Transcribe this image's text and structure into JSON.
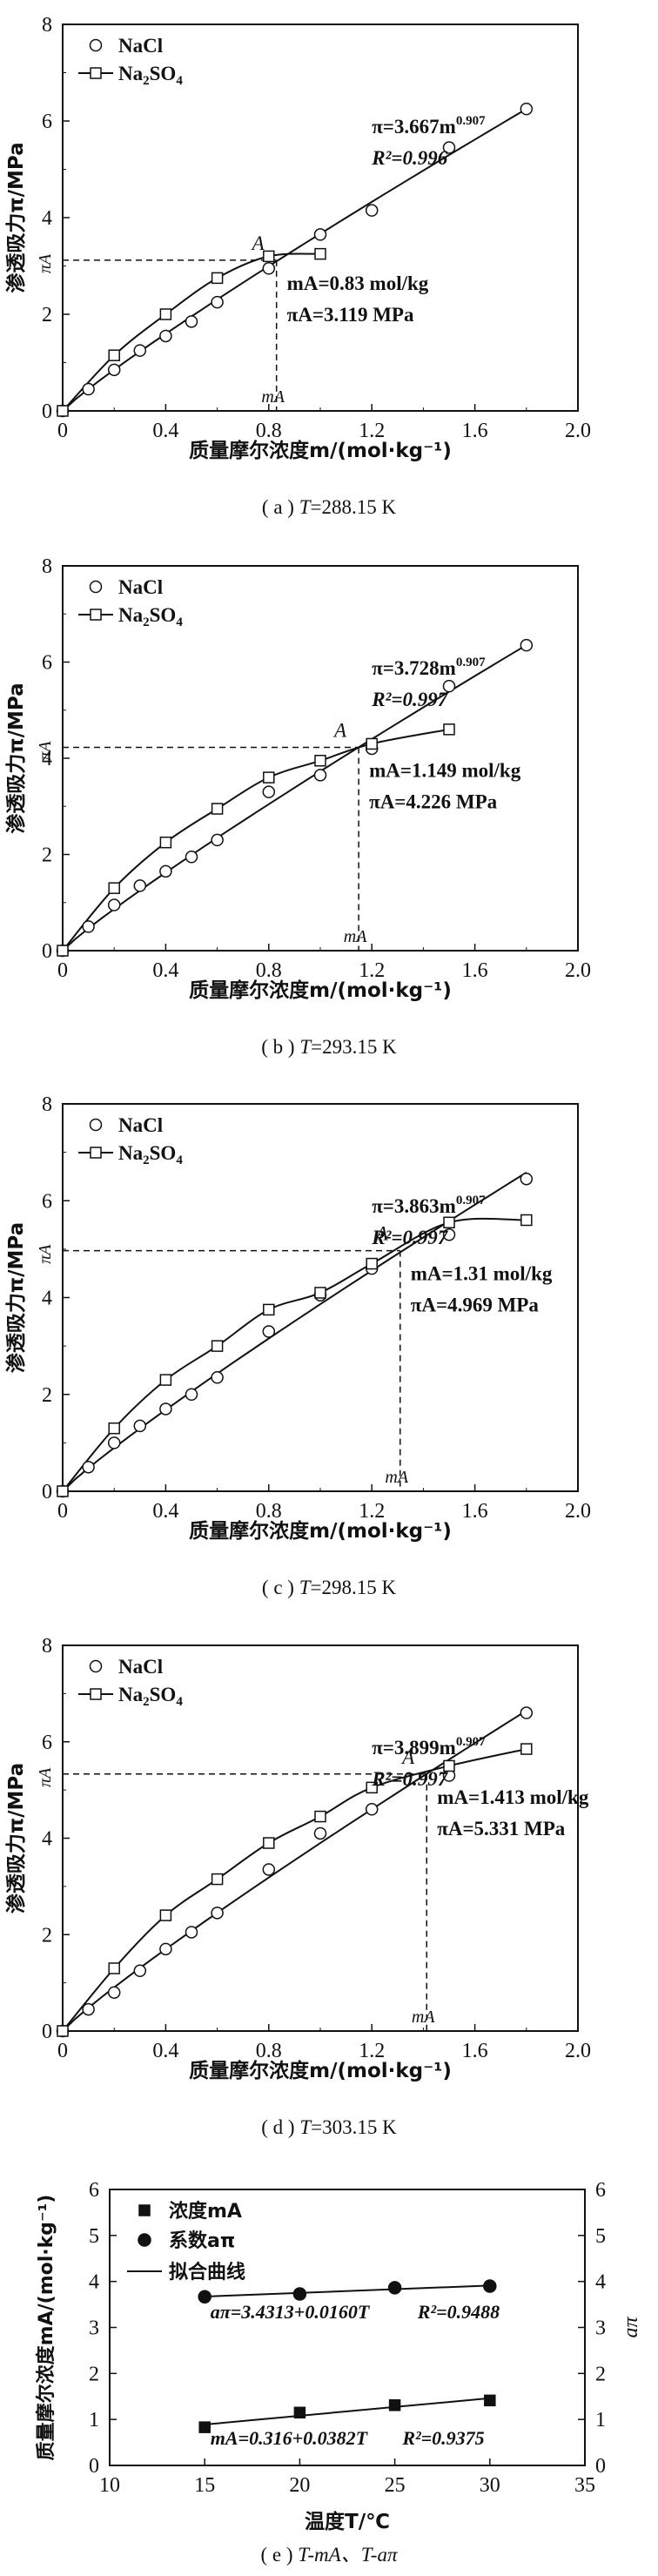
{
  "panels": [
    {
      "caption_prefix": "( a ) ",
      "caption_t": "T",
      "caption_rest": "=288.15 K",
      "chart_data": {
        "type": "scatter",
        "xlabel": "质量摩尔浓度m/(mol·kg⁻¹)",
        "ylabel": "渗透吸力π/MPa",
        "xlim": [
          0,
          2.0
        ],
        "ylim": [
          0,
          8
        ],
        "x_ticks": [
          "0",
          "0.4",
          "0.8",
          "1.2",
          "1.6",
          "2.0"
        ],
        "y_ticks": [
          "0",
          "2",
          "4",
          "6",
          "8"
        ],
        "series": [
          {
            "name": "NaCl",
            "marker": "circle",
            "fit": "line",
            "x": [
              0.0,
              0.1,
              0.2,
              0.3,
              0.4,
              0.5,
              0.6,
              0.8,
              1.0,
              1.2,
              1.5,
              1.8
            ],
            "y": [
              0.0,
              0.45,
              0.85,
              1.25,
              1.55,
              1.85,
              2.25,
              2.95,
              3.65,
              4.15,
              5.45,
              6.25
            ]
          },
          {
            "name": "Na2SO4",
            "marker": "square",
            "fit": "curve",
            "x": [
              0.0,
              0.2,
              0.4,
              0.6,
              0.8,
              1.0
            ],
            "y": [
              0.0,
              1.15,
              2.0,
              2.75,
              3.2,
              3.25
            ]
          }
        ],
        "fit_a": 3.667,
        "point_A": {
          "x": 0.83,
          "y": 3.119
        },
        "annotations": {
          "equation_prefix": "π=3.667m",
          "equation_exp": "0.907",
          "r2": "R²=0.996",
          "point_label": "A",
          "m_label": "mA=0.83 mol/kg",
          "pi_label": "πA=3.119 MPa",
          "x_mark": "mA",
          "y_mark": "πA"
        }
      }
    },
    {
      "caption_prefix": "( b ) ",
      "caption_t": "T",
      "caption_rest": "=293.15 K",
      "chart_data": {
        "type": "scatter",
        "xlabel": "质量摩尔浓度m/(mol·kg⁻¹)",
        "ylabel": "渗透吸力π/MPa",
        "xlim": [
          0,
          2.0
        ],
        "ylim": [
          0,
          8
        ],
        "x_ticks": [
          "0",
          "0.4",
          "0.8",
          "1.2",
          "1.6",
          "2.0"
        ],
        "y_ticks": [
          "0",
          "2",
          "4",
          "6",
          "8"
        ],
        "series": [
          {
            "name": "NaCl",
            "marker": "circle",
            "fit": "line",
            "x": [
              0.0,
              0.1,
              0.2,
              0.3,
              0.4,
              0.5,
              0.6,
              0.8,
              1.0,
              1.2,
              1.5,
              1.8
            ],
            "y": [
              0.0,
              0.5,
              0.95,
              1.35,
              1.65,
              1.95,
              2.3,
              3.3,
              3.65,
              4.2,
              5.5,
              6.35
            ]
          },
          {
            "name": "Na2SO4",
            "marker": "square",
            "fit": "curve",
            "x": [
              0.0,
              0.2,
              0.4,
              0.6,
              0.8,
              1.0,
              1.2,
              1.5
            ],
            "y": [
              0.0,
              1.3,
              2.25,
              2.95,
              3.6,
              3.95,
              4.3,
              4.6
            ]
          }
        ],
        "fit_a": 3.728,
        "point_A": {
          "x": 1.149,
          "y": 4.226
        },
        "annotations": {
          "equation_prefix": "π=3.728m",
          "equation_exp": "0.907",
          "r2": "R²=0.997",
          "point_label": "A",
          "m_label": "mA=1.149 mol/kg",
          "pi_label": "πA=4.226 MPa",
          "x_mark": "mA",
          "y_mark": "πA"
        }
      }
    },
    {
      "caption_prefix": "( c ) ",
      "caption_t": "T",
      "caption_rest": "=298.15 K",
      "chart_data": {
        "type": "scatter",
        "xlabel": "质量摩尔浓度m/(mol·kg⁻¹)",
        "ylabel": "渗透吸力π/MPa",
        "xlim": [
          0,
          2.0
        ],
        "ylim": [
          0,
          8
        ],
        "x_ticks": [
          "0",
          "0.4",
          "0.8",
          "1.2",
          "1.6",
          "2.0"
        ],
        "y_ticks": [
          "0",
          "2",
          "4",
          "6",
          "8"
        ],
        "series": [
          {
            "name": "NaCl",
            "marker": "circle",
            "fit": "line",
            "x": [
              0.0,
              0.1,
              0.2,
              0.3,
              0.4,
              0.5,
              0.6,
              0.8,
              1.0,
              1.2,
              1.5,
              1.8
            ],
            "y": [
              0.0,
              0.5,
              1.0,
              1.35,
              1.7,
              2.0,
              2.35,
              3.3,
              4.05,
              4.6,
              5.3,
              6.45
            ]
          },
          {
            "name": "Na2SO4",
            "marker": "square",
            "fit": "curve",
            "x": [
              0.0,
              0.2,
              0.4,
              0.6,
              0.8,
              1.0,
              1.2,
              1.5,
              1.8
            ],
            "y": [
              0.0,
              1.3,
              2.3,
              3.0,
              3.75,
              4.1,
              4.7,
              5.55,
              5.6
            ]
          }
        ],
        "fit_a": 3.863,
        "point_A": {
          "x": 1.31,
          "y": 4.969
        },
        "annotations": {
          "equation_prefix": "π=3.863m",
          "equation_exp": "0.907",
          "r2": "R²=0.997",
          "point_label": "A",
          "m_label": "mA=1.31 mol/kg",
          "pi_label": "πA=4.969 MPa",
          "x_mark": "mA",
          "y_mark": "πA"
        }
      }
    },
    {
      "caption_prefix": "( d ) ",
      "caption_t": "T",
      "caption_rest": "=303.15 K",
      "chart_data": {
        "type": "scatter",
        "xlabel": "质量摩尔浓度m/(mol·kg⁻¹)",
        "ylabel": "渗透吸力π/MPa",
        "xlim": [
          0,
          2.0
        ],
        "ylim": [
          0,
          8
        ],
        "x_ticks": [
          "0",
          "0.4",
          "0.8",
          "1.2",
          "1.6",
          "2.0"
        ],
        "y_ticks": [
          "0",
          "2",
          "4",
          "6",
          "8"
        ],
        "series": [
          {
            "name": "NaCl",
            "marker": "circle",
            "fit": "line",
            "x": [
              0.0,
              0.1,
              0.2,
              0.3,
              0.4,
              0.5,
              0.6,
              0.8,
              1.0,
              1.2,
              1.5,
              1.8
            ],
            "y": [
              0.0,
              0.45,
              0.8,
              1.25,
              1.7,
              2.05,
              2.45,
              3.35,
              4.1,
              4.6,
              5.3,
              6.6
            ]
          },
          {
            "name": "Na2SO4",
            "marker": "square",
            "fit": "curve",
            "x": [
              0.0,
              0.2,
              0.4,
              0.6,
              0.8,
              1.0,
              1.2,
              1.5,
              1.8
            ],
            "y": [
              0.0,
              1.3,
              2.4,
              3.15,
              3.9,
              4.45,
              5.05,
              5.5,
              5.85
            ]
          }
        ],
        "fit_a": 3.899,
        "point_A": {
          "x": 1.413,
          "y": 5.331
        },
        "annotations": {
          "equation_prefix": "π=3.899m",
          "equation_exp": "0.907",
          "r2": "R²=0.997",
          "point_label": "A",
          "m_label": "mA=1.413 mol/kg",
          "pi_label": "πA=5.331 MPa",
          "x_mark": "mA",
          "y_mark": "πA"
        }
      }
    },
    {
      "caption_prefix": "( e ) ",
      "caption_t": "T-mA、T-aπ",
      "caption_rest": "",
      "chart_data": {
        "type": "scatter",
        "xlabel": "温度T/℃",
        "ylabel": "质量摩尔浓度mA/(mol·kg⁻¹)",
        "ylabel_right": "aπ",
        "xlim": [
          10,
          35
        ],
        "ylim": [
          0,
          6
        ],
        "ylim_right": [
          0,
          6
        ],
        "x_ticks": [
          "10",
          "15",
          "20",
          "25",
          "30",
          "35"
        ],
        "y_ticks": [
          "0",
          "1",
          "2",
          "3",
          "4",
          "5",
          "6"
        ],
        "y_ticks_right": [
          "0",
          "1",
          "2",
          "3",
          "4",
          "5",
          "6"
        ],
        "legend": [
          "浓度mA",
          "系数aπ",
          "拟合曲线"
        ],
        "series": [
          {
            "name": "浓度mA",
            "marker": "filled-square",
            "x": [
              15,
              20,
              25,
              30
            ],
            "y": [
              0.83,
              1.149,
              1.31,
              1.413
            ]
          },
          {
            "name": "系数aπ",
            "marker": "filled-circle",
            "x": [
              15,
              20,
              25,
              30
            ],
            "y": [
              3.667,
              3.728,
              3.863,
              3.899
            ]
          }
        ],
        "fits": [
          {
            "intercept": 3.4313,
            "slope": 0.016,
            "label": "aπ=3.4313+0.0160T",
            "r2": "R²=0.9488"
          },
          {
            "intercept": 0.316,
            "slope": 0.0382,
            "label": "mA=0.316+0.0382T",
            "r2": "R²=0.9375"
          }
        ]
      }
    }
  ]
}
